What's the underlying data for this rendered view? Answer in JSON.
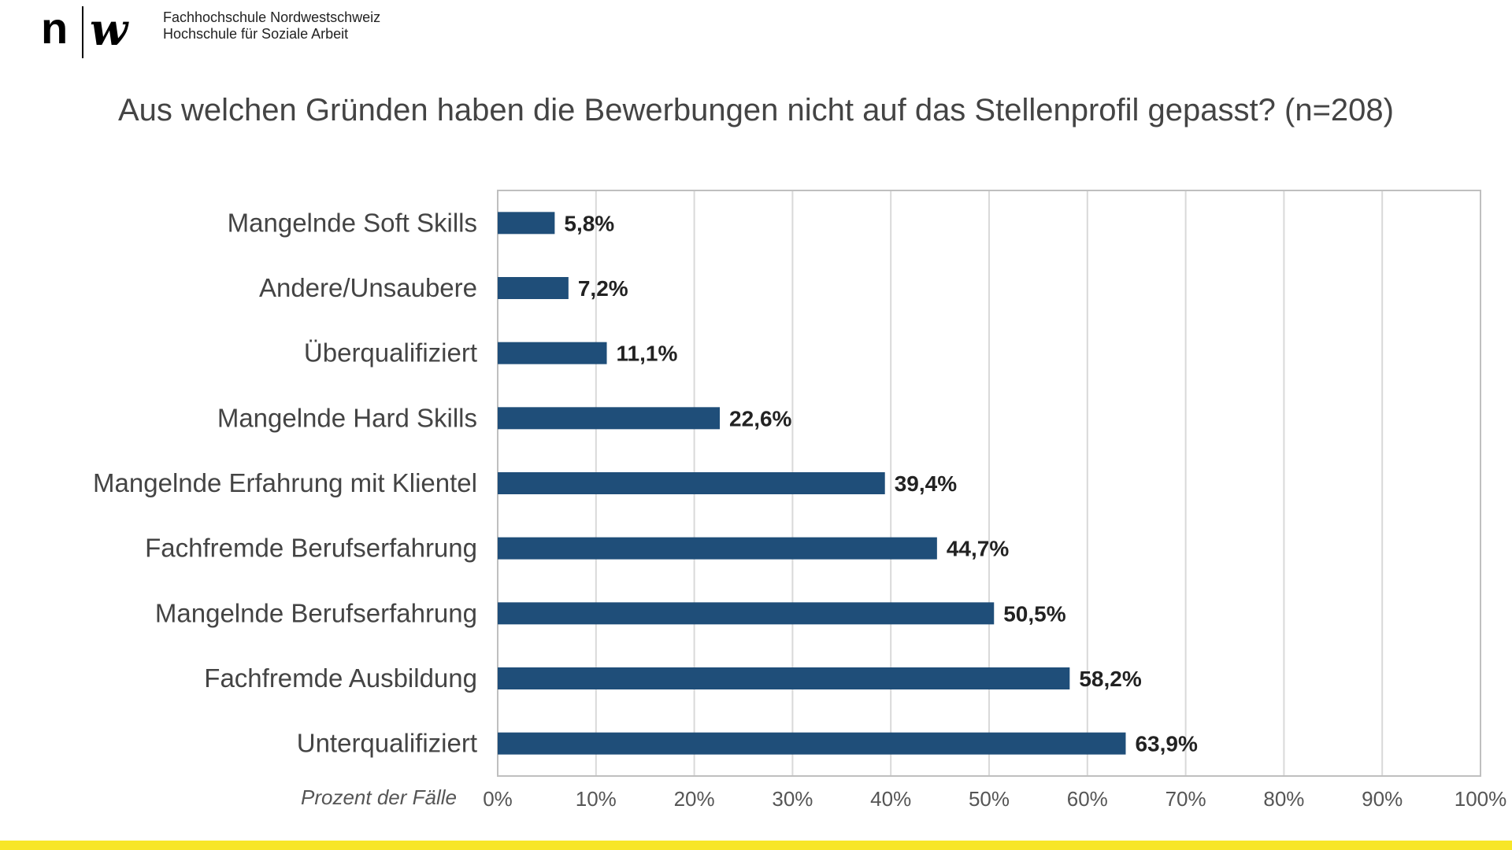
{
  "header": {
    "org_line1": "Fachhochschule Nordwestschweiz",
    "org_line2": "Hochschule für Soziale Arbeit",
    "logo_letters": "n w"
  },
  "colors": {
    "bar": "#1f4e79",
    "grid": "#d9d9d9",
    "accent_stripe": "#f7e628",
    "label_text": "#444444",
    "value_text": "#222222"
  },
  "chart_data": {
    "type": "bar",
    "orientation": "horizontal",
    "title": "Aus welchen Gründen haben die Bewerbungen nicht auf das Stellenprofil gepasst? (n=208)",
    "xlabel": "Prozent der Fälle",
    "ylabel": "",
    "xlim": [
      0,
      100
    ],
    "grid": true,
    "x_ticks": [
      "0%",
      "10%",
      "20%",
      "30%",
      "40%",
      "50%",
      "60%",
      "70%",
      "80%",
      "90%",
      "100%"
    ],
    "categories": [
      "Mangelnde Soft Skills",
      "Andere/Unsaubere",
      "Überqualifiziert",
      "Mangelnde Hard Skills",
      "Mangelnde Erfahrung mit Klientel",
      "Fachfremde Berufserfahrung",
      "Mangelnde Berufserfahrung",
      "Fachfremde Ausbildung",
      "Unterqualifiziert"
    ],
    "values": [
      5.8,
      7.2,
      11.1,
      22.6,
      39.4,
      44.7,
      50.5,
      58.2,
      63.9
    ],
    "value_labels": [
      "5,8%",
      "7,2%",
      "11,1%",
      "22,6%",
      "39,4%",
      "44,7%",
      "50,5%",
      "58,2%",
      "63,9%"
    ]
  }
}
